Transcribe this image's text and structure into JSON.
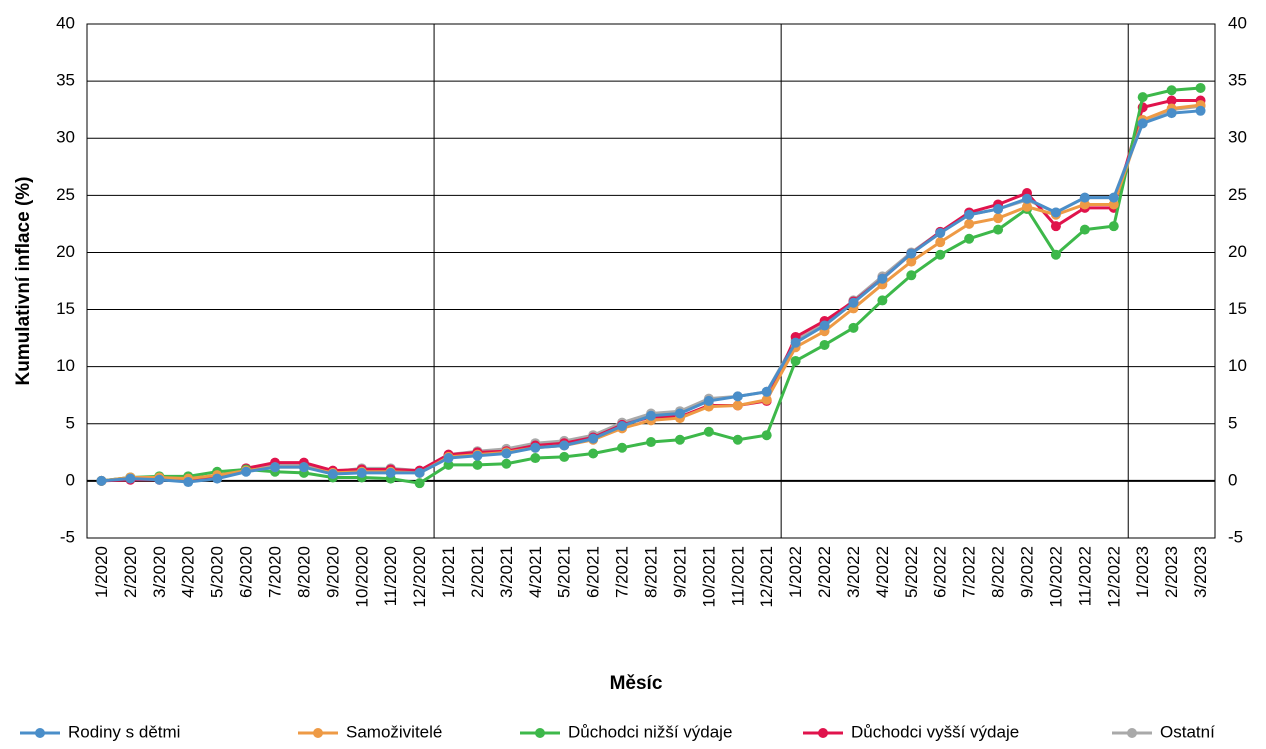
{
  "chart_data": {
    "type": "line",
    "x_label": "Měsíc",
    "y_label": "Kumulativní inflace (%)",
    "categories": [
      "1/2020",
      "2/2020",
      "3/2020",
      "4/2020",
      "5/2020",
      "6/2020",
      "7/2020",
      "8/2020",
      "9/2020",
      "10/2020",
      "11/2020",
      "12/2020",
      "1/2021",
      "2/2021",
      "3/2021",
      "4/2021",
      "5/2021",
      "6/2021",
      "7/2021",
      "8/2021",
      "9/2021",
      "10/2021",
      "11/2021",
      "12/2021",
      "1/2022",
      "2/2022",
      "3/2022",
      "4/2022",
      "5/2022",
      "6/2022",
      "7/2022",
      "8/2022",
      "9/2022",
      "10/2022",
      "11/2022",
      "12/2022",
      "1/2023",
      "2/2023",
      "3/2023"
    ],
    "series": [
      {
        "name": "Rodiny s dětmi",
        "color": "#4a8ec9",
        "values": [
          0,
          0.2,
          0.1,
          -0.1,
          0.2,
          0.8,
          1.2,
          1.2,
          0.6,
          0.7,
          0.7,
          0.7,
          2.0,
          2.2,
          2.4,
          2.9,
          3.1,
          3.7,
          4.8,
          5.7,
          5.9,
          7.0,
          7.4,
          7.8,
          12.1,
          13.6,
          15.6,
          17.7,
          19.9,
          21.7,
          23.3,
          23.8,
          24.7,
          23.5,
          24.8,
          24.8,
          31.3,
          32.2,
          32.4
        ]
      },
      {
        "name": "Samoživitelé",
        "color": "#ee9a45",
        "values": [
          0,
          0.3,
          0.3,
          0.2,
          0.5,
          0.9,
          1.2,
          1.2,
          0.7,
          0.8,
          0.8,
          0.7,
          2.1,
          2.3,
          2.5,
          2.9,
          3.1,
          3.6,
          4.6,
          5.3,
          5.5,
          6.5,
          6.6,
          7.1,
          11.7,
          13.1,
          15.1,
          17.2,
          19.2,
          20.9,
          22.5,
          23.0,
          24.0,
          23.3,
          24.2,
          24.2,
          31.6,
          32.6,
          32.9
        ]
      },
      {
        "name": "Důchodci nižší výdaje",
        "color": "#3db84a",
        "values": [
          0,
          0.3,
          0.4,
          0.4,
          0.8,
          1.0,
          0.8,
          0.7,
          0.3,
          0.3,
          0.2,
          -0.2,
          1.4,
          1.4,
          1.5,
          2.0,
          2.1,
          2.4,
          2.9,
          3.4,
          3.6,
          4.3,
          3.6,
          4.0,
          10.5,
          11.9,
          13.4,
          15.8,
          18.0,
          19.8,
          21.2,
          22.0,
          23.8,
          19.8,
          22.0,
          22.3,
          33.6,
          34.2,
          34.4
        ]
      },
      {
        "name": "Důchodci vyšší výdaje",
        "color": "#e0134c",
        "values": [
          0,
          0.1,
          0.1,
          0.1,
          0.4,
          1.1,
          1.6,
          1.6,
          0.9,
          1.0,
          1.0,
          0.9,
          2.3,
          2.5,
          2.6,
          3.1,
          3.3,
          3.8,
          4.9,
          5.6,
          5.6,
          6.6,
          6.6,
          7.0,
          12.6,
          14.0,
          15.7,
          17.7,
          19.9,
          21.8,
          23.5,
          24.2,
          25.2,
          22.3,
          23.9,
          23.9,
          32.7,
          33.3,
          33.3
        ]
      },
      {
        "name": "Ostatní",
        "color": "#a9a9a9",
        "values": [
          0,
          0.3,
          0.3,
          0.1,
          0.4,
          0.9,
          1.4,
          1.4,
          0.8,
          1.1,
          1.1,
          0.9,
          2.3,
          2.6,
          2.8,
          3.3,
          3.5,
          4.0,
          5.1,
          5.9,
          6.1,
          7.2,
          7.4,
          7.8,
          12.3,
          13.7,
          15.8,
          17.9,
          20.0,
          21.8,
          23.3,
          23.8,
          24.6,
          23.5,
          24.8,
          24.8,
          31.5,
          32.5,
          32.8
        ]
      }
    ],
    "ylim": [
      -5,
      40
    ],
    "yticks": [
      -5,
      0,
      5,
      10,
      15,
      20,
      25,
      30,
      35,
      40
    ],
    "y2lim": [
      -5,
      40
    ],
    "y2ticks": [
      -5,
      0,
      5,
      10,
      15,
      20,
      25,
      30,
      35,
      40
    ],
    "grid": true,
    "legend": "bottom"
  }
}
